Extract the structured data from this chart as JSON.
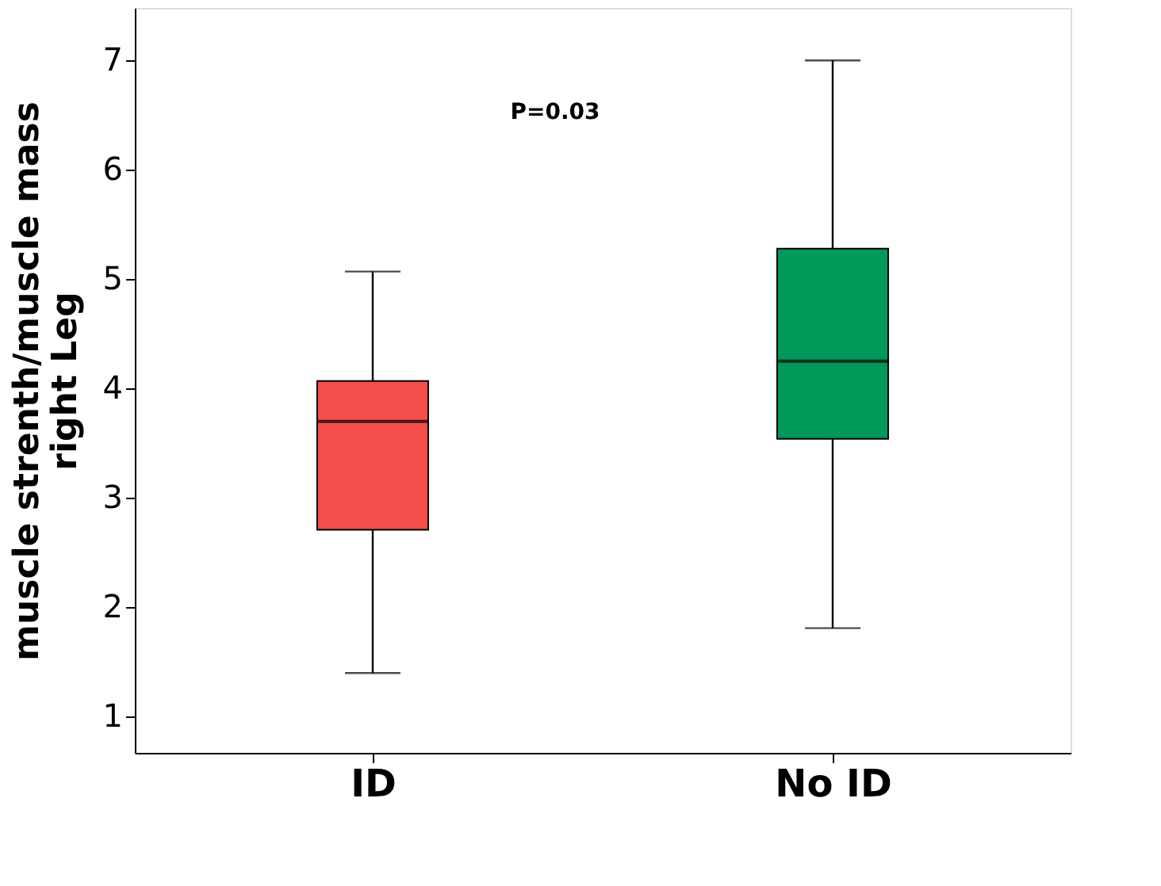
{
  "chart_data": {
    "type": "box",
    "categories": [
      "ID",
      "No ID"
    ],
    "colors": [
      "#f44d4a",
      "#00995a"
    ],
    "boxes": [
      {
        "low": 1.4,
        "q1": 2.71,
        "median": 3.7,
        "q3": 4.07,
        "high": 5.07
      },
      {
        "low": 1.81,
        "q1": 3.54,
        "median": 4.25,
        "q3": 5.28,
        "high": 7.0
      }
    ],
    "ylabel": "muscle strenth/muscle mass\nright Leg",
    "ylim": [
      0.67,
      7.48
    ],
    "yticks": [
      1,
      2,
      3,
      4,
      5,
      6,
      7
    ],
    "annotations": [
      "P=0.03"
    ],
    "grid": false
  }
}
